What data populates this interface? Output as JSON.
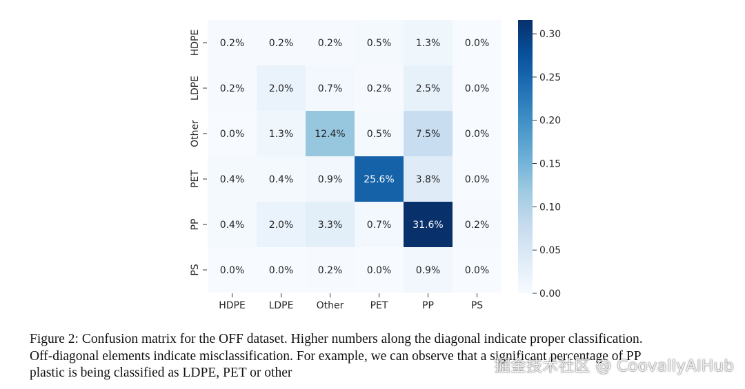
{
  "chart_data": {
    "type": "heatmap",
    "title": "",
    "xlabel": "",
    "ylabel": "",
    "row_labels": [
      "HDPE",
      "LDPE",
      "Other",
      "PET",
      "PP",
      "PS"
    ],
    "col_labels": [
      "HDPE",
      "LDPE",
      "Other",
      "PET",
      "PP",
      "PS"
    ],
    "values": [
      [
        0.002,
        0.002,
        0.002,
        0.005,
        0.013,
        0.0
      ],
      [
        0.002,
        0.02,
        0.007,
        0.002,
        0.025,
        0.0
      ],
      [
        0.0,
        0.013,
        0.124,
        0.005,
        0.075,
        0.0
      ],
      [
        0.004,
        0.004,
        0.009,
        0.256,
        0.038,
        0.0
      ],
      [
        0.004,
        0.02,
        0.033,
        0.007,
        0.316,
        0.002
      ],
      [
        0.0,
        0.0,
        0.002,
        0.0,
        0.009,
        0.0
      ]
    ],
    "cell_labels": [
      [
        "0.2%",
        "0.2%",
        "0.2%",
        "0.5%",
        "1.3%",
        "0.0%"
      ],
      [
        "0.2%",
        "2.0%",
        "0.7%",
        "0.2%",
        "2.5%",
        "0.0%"
      ],
      [
        "0.0%",
        "1.3%",
        "12.4%",
        "0.5%",
        "7.5%",
        "0.0%"
      ],
      [
        "0.4%",
        "0.4%",
        "0.9%",
        "25.6%",
        "3.8%",
        "0.0%"
      ],
      [
        "0.4%",
        "2.0%",
        "3.3%",
        "0.7%",
        "31.6%",
        "0.2%"
      ],
      [
        "0.0%",
        "0.0%",
        "0.2%",
        "0.0%",
        "0.9%",
        "0.0%"
      ]
    ],
    "colormap": "Blues",
    "colorbar": {
      "range": [
        0,
        0.316
      ],
      "ticks": [
        0.0,
        0.05,
        0.1,
        0.15,
        0.2,
        0.25,
        0.3
      ],
      "tick_labels": [
        "0.00",
        "0.05",
        "0.10",
        "0.15",
        "0.20",
        "0.25",
        "0.30"
      ]
    }
  },
  "caption": {
    "line1": "Figure 2:  Confusion matrix for the OFF dataset.  Higher numbers along the diagonal indicate proper classification.",
    "line2": "Off-diagonal elements indicate misclassification.  For example, we can observe that a significant percentage of PP",
    "line3": "plastic is being classified as LDPE, PET or other"
  },
  "watermark": "掘金技术社区 @ CoovallyAIHub"
}
